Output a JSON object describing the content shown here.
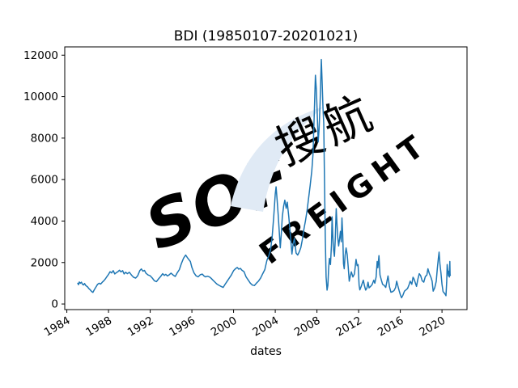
{
  "colors": {
    "background": "#ffffff",
    "axis": "#000000",
    "text": "#000000",
    "line": "#1f77b4",
    "watermark_blue": "#e6eef7",
    "watermark_swoosh": "#e0eaf5",
    "watermark_gray": "#eeeeee"
  },
  "watermark": {
    "logo_text": "SOF",
    "cn_text": "搜航",
    "en_text": "FREIGHT"
  },
  "chart_data": {
    "type": "line",
    "title": "BDI (19850107-20201021)",
    "xlabel": "dates",
    "ylabel": "",
    "grid": false,
    "legend": "none",
    "xlim": [
      1983.8,
      2022.4
    ],
    "ylim": [
      -270,
      12400
    ],
    "x_ticks": [
      1984,
      1988,
      1992,
      1996,
      2000,
      2004,
      2008,
      2012,
      2016,
      2020
    ],
    "y_ticks": [
      0,
      2000,
      4000,
      6000,
      8000,
      10000,
      12000
    ],
    "x_unit": "year",
    "series": [
      {
        "name": "BDI",
        "color": "#1f77b4",
        "points": [
          [
            1985.05,
            1000
          ],
          [
            1985.12,
            930
          ],
          [
            1985.2,
            1060
          ],
          [
            1985.3,
            1000
          ],
          [
            1985.4,
            1050
          ],
          [
            1985.5,
            950
          ],
          [
            1985.6,
            920
          ],
          [
            1985.7,
            990
          ],
          [
            1985.8,
            900
          ],
          [
            1985.9,
            860
          ],
          [
            1986.0,
            820
          ],
          [
            1986.1,
            750
          ],
          [
            1986.25,
            680
          ],
          [
            1986.4,
            590
          ],
          [
            1986.5,
            560
          ],
          [
            1986.65,
            700
          ],
          [
            1986.8,
            820
          ],
          [
            1986.95,
            950
          ],
          [
            1987.1,
            1000
          ],
          [
            1987.25,
            960
          ],
          [
            1987.4,
            1050
          ],
          [
            1987.55,
            1120
          ],
          [
            1987.7,
            1210
          ],
          [
            1987.85,
            1320
          ],
          [
            1988.0,
            1430
          ],
          [
            1988.15,
            1560
          ],
          [
            1988.3,
            1500
          ],
          [
            1988.45,
            1610
          ],
          [
            1988.6,
            1450
          ],
          [
            1988.75,
            1510
          ],
          [
            1988.9,
            1560
          ],
          [
            1989.05,
            1630
          ],
          [
            1989.2,
            1550
          ],
          [
            1989.35,
            1610
          ],
          [
            1989.5,
            1450
          ],
          [
            1989.65,
            1530
          ],
          [
            1989.8,
            1460
          ],
          [
            1990.0,
            1530
          ],
          [
            1990.2,
            1400
          ],
          [
            1990.4,
            1290
          ],
          [
            1990.6,
            1250
          ],
          [
            1990.8,
            1360
          ],
          [
            1991.0,
            1610
          ],
          [
            1991.15,
            1690
          ],
          [
            1991.3,
            1580
          ],
          [
            1991.45,
            1620
          ],
          [
            1991.6,
            1480
          ],
          [
            1991.8,
            1400
          ],
          [
            1992.0,
            1360
          ],
          [
            1992.2,
            1250
          ],
          [
            1992.4,
            1120
          ],
          [
            1992.6,
            1080
          ],
          [
            1992.8,
            1210
          ],
          [
            1993.0,
            1330
          ],
          [
            1993.2,
            1460
          ],
          [
            1993.35,
            1380
          ],
          [
            1993.5,
            1430
          ],
          [
            1993.65,
            1350
          ],
          [
            1993.8,
            1400
          ],
          [
            1994.0,
            1490
          ],
          [
            1994.2,
            1400
          ],
          [
            1994.4,
            1330
          ],
          [
            1994.6,
            1510
          ],
          [
            1994.8,
            1660
          ],
          [
            1995.0,
            1960
          ],
          [
            1995.2,
            2210
          ],
          [
            1995.4,
            2360
          ],
          [
            1995.55,
            2250
          ],
          [
            1995.7,
            2150
          ],
          [
            1995.85,
            2050
          ],
          [
            1996.0,
            1760
          ],
          [
            1996.2,
            1500
          ],
          [
            1996.4,
            1360
          ],
          [
            1996.6,
            1310
          ],
          [
            1996.8,
            1410
          ],
          [
            1997.0,
            1440
          ],
          [
            1997.15,
            1360
          ],
          [
            1997.3,
            1310
          ],
          [
            1997.5,
            1340
          ],
          [
            1997.7,
            1300
          ],
          [
            1997.85,
            1240
          ],
          [
            1998.0,
            1160
          ],
          [
            1998.2,
            1060
          ],
          [
            1998.4,
            960
          ],
          [
            1998.6,
            900
          ],
          [
            1998.8,
            850
          ],
          [
            1999.0,
            800
          ],
          [
            1999.2,
            960
          ],
          [
            1999.4,
            1110
          ],
          [
            1999.6,
            1260
          ],
          [
            1999.8,
            1410
          ],
          [
            2000.0,
            1610
          ],
          [
            2000.2,
            1710
          ],
          [
            2000.35,
            1760
          ],
          [
            2000.5,
            1680
          ],
          [
            2000.65,
            1720
          ],
          [
            2000.8,
            1630
          ],
          [
            2001.0,
            1560
          ],
          [
            2001.2,
            1310
          ],
          [
            2001.4,
            1160
          ],
          [
            2001.6,
            1010
          ],
          [
            2001.8,
            910
          ],
          [
            2002.0,
            890
          ],
          [
            2002.2,
            1010
          ],
          [
            2002.4,
            1110
          ],
          [
            2002.6,
            1260
          ],
          [
            2002.8,
            1460
          ],
          [
            2003.0,
            1660
          ],
          [
            2003.2,
            2110
          ],
          [
            2003.4,
            2360
          ],
          [
            2003.55,
            2610
          ],
          [
            2003.7,
            3210
          ],
          [
            2003.85,
            4210
          ],
          [
            2004.0,
            5310
          ],
          [
            2004.08,
            5650
          ],
          [
            2004.18,
            5010
          ],
          [
            2004.28,
            4310
          ],
          [
            2004.38,
            3510
          ],
          [
            2004.48,
            2710
          ],
          [
            2004.58,
            3410
          ],
          [
            2004.68,
            4210
          ],
          [
            2004.8,
            4710
          ],
          [
            2004.92,
            5010
          ],
          [
            2005.05,
            4610
          ],
          [
            2005.15,
            4910
          ],
          [
            2005.3,
            4210
          ],
          [
            2005.45,
            3310
          ],
          [
            2005.6,
            2410
          ],
          [
            2005.72,
            2910
          ],
          [
            2005.84,
            3160
          ],
          [
            2006.0,
            2460
          ],
          [
            2006.15,
            2360
          ],
          [
            2006.3,
            2510
          ],
          [
            2006.45,
            2710
          ],
          [
            2006.6,
            3110
          ],
          [
            2006.75,
            3610
          ],
          [
            2006.9,
            4010
          ],
          [
            2007.05,
            4510
          ],
          [
            2007.2,
            5110
          ],
          [
            2007.35,
            5710
          ],
          [
            2007.5,
            6410
          ],
          [
            2007.62,
            7210
          ],
          [
            2007.75,
            9310
          ],
          [
            2007.85,
            11030
          ],
          [
            2007.95,
            10310
          ],
          [
            2008.05,
            8910
          ],
          [
            2008.12,
            7810
          ],
          [
            2008.2,
            8410
          ],
          [
            2008.3,
            9710
          ],
          [
            2008.42,
            11790
          ],
          [
            2008.5,
            10710
          ],
          [
            2008.58,
            9410
          ],
          [
            2008.65,
            8710
          ],
          [
            2008.72,
            6010
          ],
          [
            2008.8,
            3210
          ],
          [
            2008.88,
            1310
          ],
          [
            2008.97,
            670
          ],
          [
            2009.05,
            900
          ],
          [
            2009.12,
            1700
          ],
          [
            2009.2,
            2200
          ],
          [
            2009.3,
            1900
          ],
          [
            2009.4,
            2900
          ],
          [
            2009.45,
            4200
          ],
          [
            2009.52,
            3300
          ],
          [
            2009.6,
            2600
          ],
          [
            2009.68,
            2300
          ],
          [
            2009.75,
            3000
          ],
          [
            2009.85,
            4600
          ],
          [
            2009.92,
            3900
          ],
          [
            2010.0,
            3200
          ],
          [
            2010.08,
            2800
          ],
          [
            2010.16,
            3100
          ],
          [
            2010.25,
            3500
          ],
          [
            2010.33,
            3000
          ],
          [
            2010.4,
            4150
          ],
          [
            2010.48,
            3300
          ],
          [
            2010.55,
            1950
          ],
          [
            2010.62,
            1700
          ],
          [
            2010.7,
            2350
          ],
          [
            2010.8,
            2700
          ],
          [
            2010.9,
            2400
          ],
          [
            2011.0,
            1800
          ],
          [
            2011.1,
            1100
          ],
          [
            2011.2,
            1350
          ],
          [
            2011.3,
            1550
          ],
          [
            2011.45,
            1300
          ],
          [
            2011.6,
            1450
          ],
          [
            2011.75,
            2150
          ],
          [
            2011.85,
            1850
          ],
          [
            2011.95,
            1900
          ],
          [
            2012.05,
            900
          ],
          [
            2012.12,
            680
          ],
          [
            2012.25,
            850
          ],
          [
            2012.35,
            1000
          ],
          [
            2012.45,
            1150
          ],
          [
            2012.55,
            900
          ],
          [
            2012.68,
            670
          ],
          [
            2012.8,
            780
          ],
          [
            2012.9,
            1050
          ],
          [
            2013.0,
            780
          ],
          [
            2013.15,
            850
          ],
          [
            2013.3,
            940
          ],
          [
            2013.45,
            1150
          ],
          [
            2013.55,
            1000
          ],
          [
            2013.68,
            1300
          ],
          [
            2013.78,
            2050
          ],
          [
            2013.85,
            1750
          ],
          [
            2013.95,
            2330
          ],
          [
            2014.05,
            1400
          ],
          [
            2014.18,
            1150
          ],
          [
            2014.3,
            950
          ],
          [
            2014.45,
            900
          ],
          [
            2014.6,
            800
          ],
          [
            2014.72,
            1100
          ],
          [
            2014.82,
            1350
          ],
          [
            2014.95,
            850
          ],
          [
            2015.1,
            570
          ],
          [
            2015.25,
            590
          ],
          [
            2015.4,
            650
          ],
          [
            2015.55,
            800
          ],
          [
            2015.65,
            1100
          ],
          [
            2015.75,
            900
          ],
          [
            2015.88,
            650
          ],
          [
            2016.0,
            450
          ],
          [
            2016.12,
            300
          ],
          [
            2016.25,
            420
          ],
          [
            2016.4,
            620
          ],
          [
            2016.55,
            680
          ],
          [
            2016.7,
            750
          ],
          [
            2016.85,
            940
          ],
          [
            2016.95,
            1100
          ],
          [
            2017.1,
            950
          ],
          [
            2017.22,
            1290
          ],
          [
            2017.32,
            1200
          ],
          [
            2017.45,
            1000
          ],
          [
            2017.55,
            850
          ],
          [
            2017.68,
            1180
          ],
          [
            2017.82,
            1460
          ],
          [
            2017.95,
            1370
          ],
          [
            2018.1,
            1120
          ],
          [
            2018.25,
            1050
          ],
          [
            2018.4,
            1320
          ],
          [
            2018.55,
            1400
          ],
          [
            2018.65,
            1700
          ],
          [
            2018.78,
            1480
          ],
          [
            2018.95,
            1270
          ],
          [
            2019.05,
            1100
          ],
          [
            2019.15,
            620
          ],
          [
            2019.3,
            780
          ],
          [
            2019.45,
            1100
          ],
          [
            2019.55,
            1700
          ],
          [
            2019.65,
            2200
          ],
          [
            2019.72,
            2500
          ],
          [
            2019.8,
            1950
          ],
          [
            2019.9,
            1500
          ],
          [
            2020.0,
            950
          ],
          [
            2020.1,
            600
          ],
          [
            2020.22,
            530
          ],
          [
            2020.3,
            470
          ],
          [
            2020.38,
            400
          ],
          [
            2020.45,
            1050
          ],
          [
            2020.5,
            1900
          ],
          [
            2020.56,
            1600
          ],
          [
            2020.62,
            1350
          ],
          [
            2020.67,
            1580
          ],
          [
            2020.71,
            1300
          ],
          [
            2020.75,
            2050
          ],
          [
            2020.78,
            1420
          ],
          [
            2020.8,
            1380
          ]
        ]
      }
    ]
  }
}
